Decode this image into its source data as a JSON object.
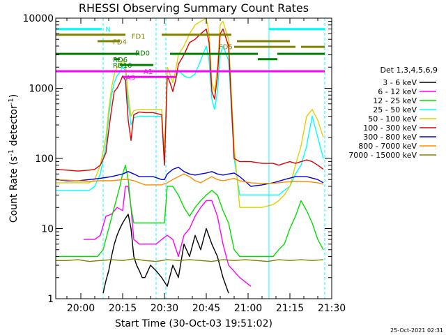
{
  "chart_data": {
    "type": "line",
    "title": "RHESSI Observing Summary Count Rates",
    "xlabel": "Start Time (30-Oct-03 19:51:02)",
    "ylabel_main": "Count Rate (s",
    "ylabel_sup1": "-1",
    "ylabel_mid": " detector",
    "ylabel_sup2": "-1",
    "ylabel_end": ")",
    "xlim": [
      0,
      99
    ],
    "ylim": [
      1,
      10000
    ],
    "yscale": "log",
    "x_ticks": [
      {
        "x": 9,
        "label": "20:00"
      },
      {
        "x": 24,
        "label": "20:15"
      },
      {
        "x": 39,
        "label": "20:30"
      },
      {
        "x": 54,
        "label": "20:45"
      },
      {
        "x": 69,
        "label": "21:00"
      },
      {
        "x": 84,
        "label": "21:15"
      },
      {
        "x": 99,
        "label": "21:30"
      }
    ],
    "y_ticks": [
      {
        "y": 1,
        "label": "1"
      },
      {
        "y": 10,
        "label": "10"
      },
      {
        "y": 100,
        "label": "100"
      },
      {
        "y": 1000,
        "label": "1000"
      },
      {
        "y": 10000,
        "label": "10000"
      }
    ],
    "legend_title": "Det 1,3,4,5,6,9",
    "legend_placement": "right",
    "series": [
      {
        "name": "3 - 6 keV",
        "color": "#000000",
        "x": [
          17,
          18,
          19,
          20,
          21,
          22,
          23,
          24,
          25,
          26,
          27,
          28,
          29,
          30,
          31,
          32,
          34,
          36,
          38,
          40,
          42,
          44,
          46,
          48,
          50,
          52,
          54,
          56,
          58,
          60,
          62
        ],
        "y": [
          1.2,
          1.8,
          2.5,
          4,
          6,
          8,
          10,
          12,
          14,
          16,
          10,
          4,
          3,
          2.5,
          2,
          2,
          3,
          2.5,
          2,
          1.5,
          3,
          2,
          6,
          4,
          8,
          5,
          10,
          6,
          4,
          2,
          1.2
        ]
      },
      {
        "name": "6 - 12 keV",
        "color": "#ff00ff",
        "x": [
          10,
          12,
          14,
          16,
          18,
          20,
          22,
          24,
          25,
          26,
          27,
          28,
          30,
          32,
          34,
          36,
          38,
          40,
          42,
          44,
          46,
          48,
          50,
          52,
          54,
          56,
          58,
          60,
          62,
          66,
          70
        ],
        "y": [
          7,
          7,
          7,
          8,
          15,
          16,
          20,
          18,
          40,
          40,
          20,
          7,
          6,
          6,
          6,
          6,
          7,
          8,
          7,
          4,
          8,
          10,
          15,
          20,
          25,
          25,
          15,
          6,
          3,
          2,
          1.5
        ]
      },
      {
        "name": "12 - 25 keV",
        "color": "#00e000",
        "x": [
          0,
          4,
          8,
          12,
          15,
          17,
          19,
          21,
          23,
          24,
          25,
          26,
          27,
          28,
          30,
          32,
          35,
          38,
          39,
          40,
          42,
          44,
          46,
          48,
          50,
          52,
          54,
          56,
          58,
          60,
          62,
          64,
          66,
          70,
          74,
          78,
          80,
          82,
          84,
          86,
          88,
          90,
          92,
          94,
          96
        ],
        "y": [
          4,
          4,
          4,
          4,
          4,
          5,
          10,
          20,
          40,
          60,
          80,
          50,
          20,
          12,
          12,
          12,
          12,
          12,
          12,
          40,
          40,
          30,
          20,
          15,
          20,
          25,
          30,
          35,
          30,
          18,
          12,
          5,
          4,
          4,
          4,
          4,
          5,
          6,
          10,
          15,
          25,
          18,
          12,
          7,
          5
        ]
      },
      {
        "name": "25 - 50 keV",
        "color": "#00ffff",
        "x": [
          0,
          4,
          8,
          12,
          14,
          16,
          18,
          19,
          20,
          21,
          22,
          23,
          24,
          25,
          26,
          27,
          28,
          30,
          32,
          35,
          38,
          39,
          40,
          41,
          42,
          43,
          44,
          46,
          48,
          50,
          52,
          54,
          55,
          56,
          57,
          58,
          59,
          60,
          62,
          64,
          66,
          70,
          74,
          78,
          80,
          82,
          84,
          86,
          88,
          90,
          92,
          94,
          96
        ],
        "y": [
          35,
          35,
          35,
          35,
          40,
          60,
          150,
          400,
          800,
          1200,
          1500,
          1700,
          2000,
          1800,
          600,
          300,
          380,
          400,
          400,
          400,
          400,
          80,
          1500,
          1200,
          900,
          1300,
          1800,
          1500,
          1400,
          1600,
          2500,
          4000,
          2500,
          700,
          500,
          900,
          3000,
          4000,
          2500,
          100,
          30,
          30,
          30,
          30,
          30,
          35,
          40,
          60,
          80,
          150,
          400,
          200,
          100
        ]
      },
      {
        "name": "50 - 100 keV",
        "color": "#e0d000",
        "x": [
          0,
          4,
          8,
          12,
          14,
          16,
          18,
          19,
          20,
          21,
          22,
          23,
          24,
          25,
          26,
          27,
          28,
          30,
          32,
          35,
          38,
          39,
          40,
          41,
          42,
          43,
          44,
          46,
          48,
          50,
          52,
          54,
          55,
          56,
          57,
          58,
          59,
          60,
          62,
          64,
          66,
          70,
          74,
          78,
          80,
          82,
          84,
          86,
          88,
          90,
          92,
          94,
          96
        ],
        "y": [
          45,
          45,
          45,
          45,
          50,
          80,
          200,
          500,
          1000,
          1600,
          2000,
          2200,
          2500,
          2200,
          800,
          400,
          480,
          500,
          500,
          500,
          500,
          100,
          2000,
          1600,
          1200,
          1800,
          3000,
          4000,
          6000,
          8000,
          9000,
          10000,
          6000,
          1200,
          900,
          2000,
          8000,
          9000,
          5000,
          150,
          20,
          20,
          20,
          22,
          25,
          30,
          40,
          80,
          150,
          400,
          500,
          350,
          200
        ]
      },
      {
        "name": "100 - 300 keV",
        "color": "#e00000",
        "x": [
          0,
          4,
          8,
          12,
          14,
          16,
          18,
          19,
          20,
          21,
          22,
          23,
          24,
          25,
          26,
          27,
          28,
          30,
          32,
          35,
          38,
          39,
          40,
          41,
          42,
          43,
          44,
          46,
          48,
          50,
          52,
          54,
          55,
          56,
          57,
          58,
          59,
          60,
          62,
          64,
          66,
          70,
          74,
          78,
          80,
          82,
          84,
          86,
          88,
          90,
          92,
          94,
          96
        ],
        "y": [
          70,
          68,
          66,
          68,
          70,
          80,
          120,
          250,
          500,
          900,
          1000,
          1200,
          1500,
          1300,
          350,
          180,
          420,
          460,
          450,
          450,
          420,
          80,
          1500,
          1200,
          900,
          1300,
          2200,
          3000,
          4500,
          5000,
          6000,
          7000,
          4500,
          900,
          700,
          1500,
          6000,
          7000,
          4000,
          100,
          90,
          90,
          85,
          85,
          80,
          85,
          90,
          85,
          90,
          95,
          90,
          80,
          70
        ]
      },
      {
        "name": "300 - 800 keV",
        "color": "#0000e0",
        "x": [
          0,
          4,
          8,
          12,
          16,
          20,
          24,
          26,
          28,
          30,
          32,
          35,
          38,
          39,
          40,
          42,
          44,
          46,
          48,
          50,
          52,
          54,
          56,
          58,
          60,
          62,
          64,
          66,
          70,
          74,
          78,
          82,
          86,
          90,
          94,
          96
        ],
        "y": [
          50,
          48,
          48,
          50,
          52,
          55,
          60,
          65,
          60,
          55,
          55,
          55,
          50,
          50,
          60,
          70,
          75,
          65,
          60,
          58,
          60,
          62,
          65,
          60,
          58,
          60,
          62,
          55,
          40,
          42,
          45,
          50,
          55,
          55,
          50,
          45
        ]
      },
      {
        "name": "800 - 7000 keV",
        "color": "#ff8c00",
        "x": [
          0,
          4,
          8,
          12,
          16,
          20,
          24,
          26,
          28,
          30,
          32,
          35,
          38,
          40,
          42,
          44,
          46,
          48,
          50,
          52,
          54,
          56,
          58,
          60,
          62,
          64,
          66,
          70,
          74,
          78,
          82,
          86,
          90,
          94,
          96
        ],
        "y": [
          50,
          49,
          48,
          47,
          48,
          48,
          50,
          50,
          48,
          45,
          42,
          42,
          42,
          45,
          50,
          55,
          60,
          55,
          48,
          45,
          50,
          55,
          50,
          48,
          50,
          52,
          48,
          45,
          44,
          44,
          46,
          47,
          47,
          45,
          43
        ]
      },
      {
        "name": "7000 - 15000 keV",
        "color": "#808000",
        "x": [
          0,
          4,
          8,
          12,
          16,
          20,
          24,
          28,
          32,
          36,
          40,
          44,
          48,
          52,
          56,
          60,
          64,
          68,
          72,
          76,
          80,
          84,
          88,
          92,
          96
        ],
        "y": [
          3.5,
          3.5,
          3.6,
          3.4,
          3.5,
          3.6,
          3.5,
          3.7,
          3.5,
          3.4,
          3.6,
          3.5,
          3.6,
          3.5,
          3.4,
          3.6,
          3.5,
          3.6,
          3.5,
          3.4,
          3.6,
          3.5,
          3.6,
          3.5,
          3.6
        ]
      }
    ],
    "state_bars": [
      {
        "label": "N",
        "color": "#00ffff",
        "segments": [
          [
            0,
            16.5
          ],
          [
            76.5,
            96.5
          ]
        ],
        "y": 7000,
        "label_x": 17.8,
        "label_y": 7000
      },
      {
        "label": "FD1",
        "color": "#808000",
        "segments": [
          [
            0,
            25
          ],
          [
            38,
            63
          ]
        ],
        "y": 5800,
        "label_x": 27.2,
        "label_y": 5600
      },
      {
        "label": "FD4",
        "color": "#808000",
        "segments": [
          [
            15,
            23
          ],
          [
            65,
            84
          ]
        ],
        "y": 4700,
        "label_x": 20.5,
        "label_y": 4650
      },
      {
        "label": "FD5",
        "color": "#808000",
        "segments": [
          [
            64,
            86
          ],
          [
            88,
            96.5
          ]
        ],
        "y": 3900,
        "label_x": 58.5,
        "label_y": 3950
      },
      {
        "label": "RD0",
        "color": "#008000",
        "segments": [
          [
            0,
            30
          ],
          [
            41,
            72.5
          ],
          [
            79.5,
            96.5
          ]
        ],
        "y": 3100,
        "label_x": 28.5,
        "label_y": 3200
      },
      {
        "label": "RD6",
        "color": "#008000",
        "segments": [
          [
            21,
            23
          ],
          [
            72.5,
            79.5
          ]
        ],
        "y": 2600,
        "label_x": 20.5,
        "label_y": 2600
      },
      {
        "label": "RD16",
        "color": "#008000",
        "segments": [
          [
            23,
            35
          ]
        ],
        "y": 2150,
        "label_x": 20.5,
        "label_y": 2150
      },
      {
        "label": "A1",
        "color": "#ff00ff",
        "segments": [
          [
            0,
            96.5
          ]
        ],
        "y": 1750,
        "label_x": 31.5,
        "label_y": 1750
      },
      {
        "label": "A3",
        "color": "#ff00ff",
        "segments": [
          [
            24,
            43
          ]
        ],
        "y": 1450,
        "label_x": 25.2,
        "label_y": 1450
      }
    ],
    "vlines": [
      {
        "x": 17,
        "color": "#00ffff",
        "style": "dashed"
      },
      {
        "x": 36,
        "color": "#00ffff",
        "style": "dashed"
      },
      {
        "x": 39.5,
        "color": "#00ffff",
        "style": "dashed"
      },
      {
        "x": 76.5,
        "color": "#00ffff",
        "style": "solid"
      },
      {
        "x": 96.5,
        "color": "#00ffff",
        "style": "dashed"
      }
    ],
    "timestamp": "25-Oct-2021 02:31"
  }
}
